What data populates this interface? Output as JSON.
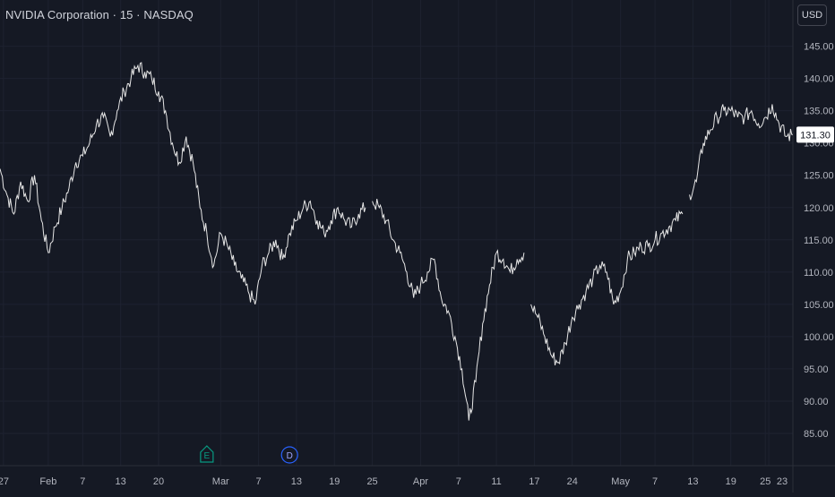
{
  "header": {
    "symbol_title": "NVIDIA Corporation · 15 · NASDAQ",
    "currency": "USD"
  },
  "colors": {
    "background": "#151924",
    "grid": "#1e2230",
    "text": "#b2b5be",
    "price_line": "#e6e6e6",
    "earnings_event": "#089981",
    "dividend_event": "#2962ff"
  },
  "chart_data": {
    "type": "line",
    "ylim": [
      80,
      148
    ],
    "xlim": [
      0,
      115
    ],
    "grid": true,
    "y_ticks": [
      145,
      140,
      135,
      130,
      125,
      120,
      115,
      110,
      105,
      100,
      95,
      90,
      85
    ],
    "y_tick_labels": [
      "145.00",
      "140.00",
      "135.00",
      "130.00",
      "125.00",
      "120.00",
      "115.00",
      "110.00",
      "105.00",
      "100.00",
      "95.00",
      "90.00",
      "85.00"
    ],
    "x_ticks": [
      {
        "label": "27",
        "x": 0.5
      },
      {
        "label": "Feb",
        "x": 7
      },
      {
        "label": "7",
        "x": 12
      },
      {
        "label": "13",
        "x": 17.5
      },
      {
        "label": "20",
        "x": 23
      },
      {
        "label": "Mar",
        "x": 32
      },
      {
        "label": "7",
        "x": 37.5
      },
      {
        "label": "13",
        "x": 43
      },
      {
        "label": "19",
        "x": 48.5
      },
      {
        "label": "25",
        "x": 54
      },
      {
        "label": "Apr",
        "x": 61
      },
      {
        "label": "7",
        "x": 66.5
      },
      {
        "label": "11",
        "x": 72
      },
      {
        "label": "17",
        "x": 77.5
      },
      {
        "label": "24",
        "x": 83
      },
      {
        "label": "May",
        "x": 90
      },
      {
        "label": "7",
        "x": 95
      },
      {
        "label": "13",
        "x": 100.5
      },
      {
        "label": "19",
        "x": 106
      },
      {
        "label": "25",
        "x": 111
      },
      {
        "label": "23",
        "x": 111.5
      }
    ],
    "last_price": 131.3,
    "last_price_label": "131.30",
    "events": [
      {
        "type": "earnings",
        "label": "E",
        "x": 30
      },
      {
        "type": "dividend",
        "label": "D",
        "x": 42
      }
    ],
    "series": [
      {
        "segments": [
          {
            "x": [
              0,
              1,
              2,
              3,
              4,
              5,
              6,
              7,
              8,
              9,
              10,
              11,
              12,
              13,
              14,
              15,
              16,
              17,
              18,
              19,
              20,
              21,
              22,
              23,
              24,
              25,
              26,
              27,
              28,
              29,
              30,
              31,
              32,
              33,
              34,
              35,
              36,
              37,
              38,
              39,
              40,
              41,
              42,
              43,
              44,
              45,
              46,
              47,
              48,
              49,
              50,
              51,
              52,
              53
            ],
            "y": [
              126,
              122,
              119,
              124,
              121,
              125,
              118,
              113,
              117,
              120,
              123,
              127,
              128,
              130,
              133,
              134,
              131,
              135,
              138,
              140,
              142,
              141,
              140,
              138,
              135,
              130,
              127,
              131,
              127,
              120,
              116,
              111,
              116,
              114,
              111,
              109,
              107,
              105,
              111,
              113,
              115,
              112,
              116,
              118,
              120,
              121,
              118,
              116,
              118,
              120,
              118,
              117,
              119,
              120
            ]
          },
          {
            "x": [
              54,
              55,
              56,
              57,
              58,
              59,
              60,
              61,
              62,
              63,
              64,
              65,
              66,
              67,
              68,
              69,
              70,
              71,
              72,
              73,
              74,
              75,
              76
            ],
            "y": [
              121,
              120,
              118,
              115,
              113,
              110,
              106,
              108,
              110,
              112,
              106,
              104,
              100,
              95,
              87,
              93,
              102,
              108,
              113,
              112,
              110,
              112,
              113
            ]
          },
          {
            "x": [
              77,
              78,
              79,
              80,
              81,
              82,
              83,
              84,
              85,
              86,
              87,
              88,
              89,
              90,
              91,
              92,
              93,
              94,
              95,
              96,
              97,
              98,
              99
            ],
            "y": [
              105,
              103,
              100,
              97,
              96,
              99,
              103,
              105,
              107,
              109,
              111,
              110,
              105,
              107,
              112,
              113,
              114,
              114,
              115,
              116,
              117,
              118,
              119
            ]
          },
          {
            "x": [
              100,
              101,
              102,
              103,
              104,
              105,
              106,
              107,
              108,
              109,
              110,
              111,
              112,
              113,
              114,
              115
            ],
            "y": [
              122,
              124,
              130,
              132,
              134,
              135,
              135,
              134,
              134,
              135,
              133,
              134,
              136,
              133,
              131,
              131.3
            ]
          }
        ]
      }
    ]
  }
}
